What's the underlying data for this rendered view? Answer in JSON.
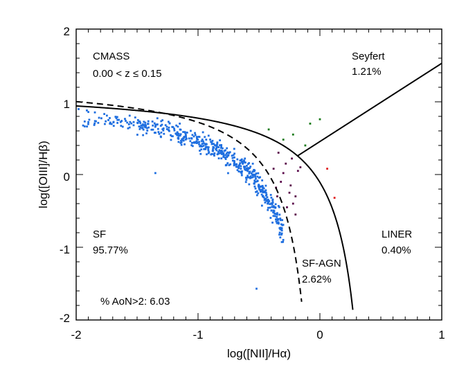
{
  "chart_data": {
    "type": "scatter",
    "title": "",
    "xlabel": "log([NII]/Hα)",
    "ylabel": "log([OIII]/Hβ)",
    "xlim": [
      -2,
      1
    ],
    "ylim": [
      -2,
      2
    ],
    "x_ticks": [
      -2,
      -1,
      0,
      1
    ],
    "y_ticks": [
      2,
      1,
      0,
      -1,
      -2
    ],
    "grid": false,
    "annotations": {
      "sample": "CMASS",
      "redshift": "0.00 < z ≤ 0.15",
      "seyfert_label": "Seyfert",
      "seyfert_pct": "1.21%",
      "sf_label": "SF",
      "sf_pct": "95.77%",
      "sfagn_label": "SF-AGN",
      "sfagn_pct": "2.62%",
      "liner_label": "LINER",
      "liner_pct": "0.40%",
      "aon": "% AoN>2:  6.03"
    },
    "colors": {
      "sf": "#1f6fe0",
      "sf_agn": "#5a0a4a",
      "seyfert": "#1a7a1a",
      "liner": "#e02020",
      "axes": "#000000"
    },
    "lines": [
      {
        "name": "Kewley 2001 extreme starburst",
        "style": "solid",
        "formula": "0.61/(x-0.47)+1.19",
        "x_range": [
          -2,
          0.27
        ]
      },
      {
        "name": "Kauffmann 2003 pure star formation",
        "style": "dashed",
        "formula": "0.61/(x-0.05)+1.3",
        "x_range": [
          -2,
          -0.15
        ]
      },
      {
        "name": "Seyfert-LINER division",
        "style": "solid",
        "points": [
          [
            -0.18,
            0.26
          ],
          [
            1.0,
            1.53
          ]
        ]
      }
    ],
    "series": [
      {
        "name": "SF",
        "color": "#1f6fe0",
        "cloud": {
          "count": 540,
          "seed": 12345
        },
        "outliers": [
          [
            -1.35,
            0.02
          ],
          [
            -0.52,
            -1.57
          ],
          [
            -1.98,
            0.9
          ],
          [
            -1.9,
            0.86
          ],
          [
            -1.15,
            0.7
          ]
        ]
      },
      {
        "name": "SF-AGN",
        "color": "#5a0a4a",
        "points": [
          [
            -0.34,
            0.3
          ],
          [
            -0.28,
            0.15
          ],
          [
            -0.38,
            0.08
          ],
          [
            -0.32,
            -0.1
          ],
          [
            -0.25,
            -0.25
          ],
          [
            -0.22,
            -0.4
          ],
          [
            -0.2,
            -0.55
          ],
          [
            -0.35,
            -0.3
          ],
          [
            -0.18,
            0.05
          ],
          [
            -0.3,
            0.02
          ],
          [
            -0.24,
            -0.15
          ],
          [
            -0.2,
            -0.3
          ],
          [
            -0.16,
            0.1
          ],
          [
            -0.27,
            -0.45
          ],
          [
            -0.23,
            0.22
          ],
          [
            -0.36,
            -0.18
          ]
        ]
      },
      {
        "name": "Seyfert",
        "color": "#1a7a1a",
        "points": [
          [
            -0.42,
            0.62
          ],
          [
            -0.22,
            0.55
          ],
          [
            -0.08,
            0.7
          ],
          [
            0.0,
            0.76
          ],
          [
            -0.12,
            0.4
          ],
          [
            -0.3,
            0.48
          ]
        ]
      },
      {
        "name": "LINER",
        "color": "#e02020",
        "points": [
          [
            0.06,
            0.08
          ],
          [
            0.12,
            -0.32
          ]
        ]
      }
    ]
  }
}
